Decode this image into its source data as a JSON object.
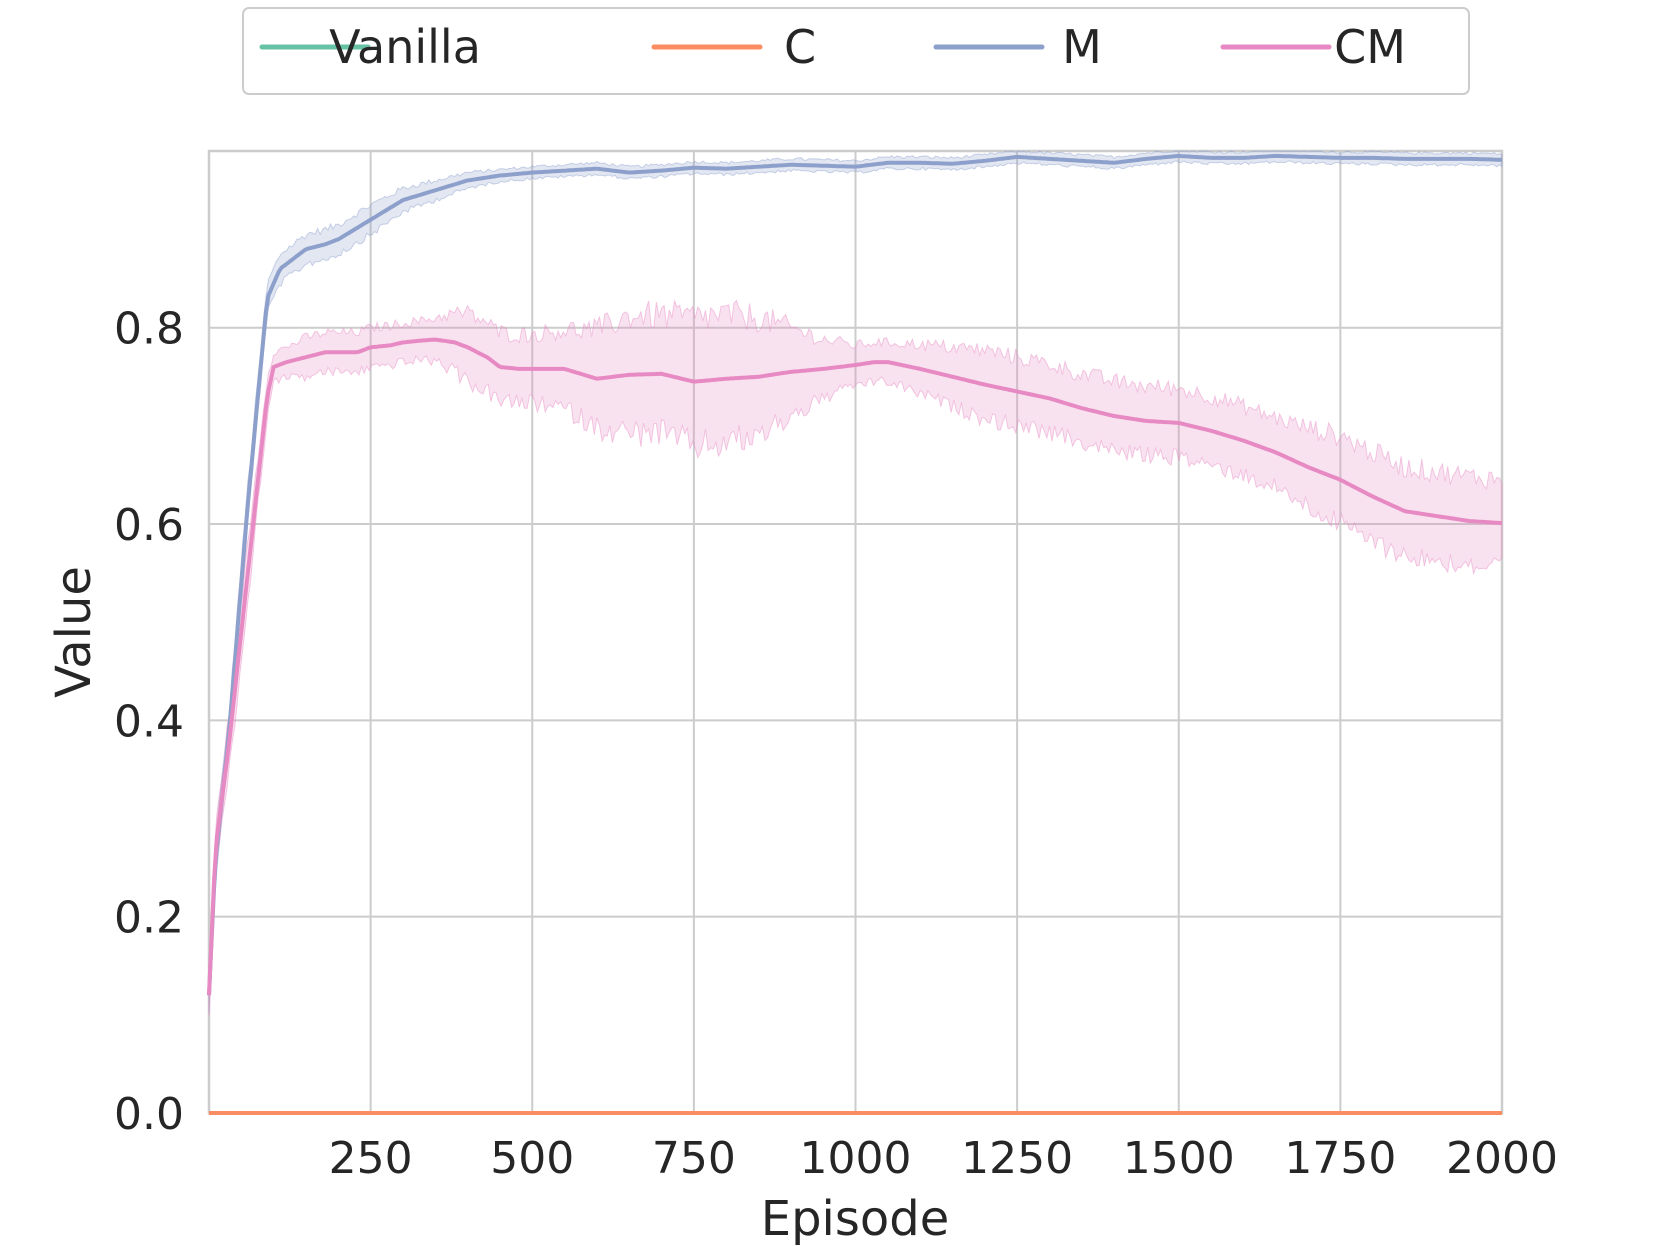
{
  "chart_data": {
    "type": "line",
    "xlabel": "Episode",
    "ylabel": "Value",
    "xlim": [
      0,
      2000
    ],
    "ylim": [
      0,
      0.98
    ],
    "xticks": [
      250,
      500,
      750,
      1000,
      1250,
      1500,
      1750,
      2000
    ],
    "xtick_labels": [
      "250",
      "500",
      "750",
      "1000",
      "1250",
      "1500",
      "1750",
      "2000"
    ],
    "yticks": [
      0.0,
      0.2,
      0.4,
      0.6,
      0.8
    ],
    "ytick_labels": [
      "0.0",
      "0.2",
      "0.4",
      "0.6",
      "0.8"
    ],
    "grid": true,
    "legend_position": "top-center",
    "series": [
      {
        "name": "Vanilla",
        "color": "#66c2a5",
        "x": [
          0,
          2000
        ],
        "y": [
          0.0,
          0.0
        ]
      },
      {
        "name": "C",
        "color": "#fc8d62",
        "x": [
          0,
          2000
        ],
        "y": [
          0.0,
          0.0
        ]
      },
      {
        "name": "M",
        "color": "#8da0cb",
        "x": [
          0,
          10,
          30,
          60,
          90,
          110,
          130,
          150,
          180,
          200,
          250,
          300,
          350,
          400,
          450,
          500,
          550,
          600,
          650,
          700,
          750,
          800,
          850,
          900,
          950,
          1000,
          1050,
          1100,
          1150,
          1200,
          1250,
          1300,
          1350,
          1400,
          1450,
          1500,
          1550,
          1600,
          1650,
          1700,
          1750,
          1800,
          1850,
          1900,
          1950,
          2000
        ],
        "y": [
          0.12,
          0.26,
          0.38,
          0.62,
          0.83,
          0.86,
          0.87,
          0.88,
          0.885,
          0.89,
          0.91,
          0.93,
          0.94,
          0.95,
          0.955,
          0.958,
          0.96,
          0.962,
          0.958,
          0.96,
          0.963,
          0.962,
          0.964,
          0.966,
          0.965,
          0.964,
          0.968,
          0.968,
          0.967,
          0.97,
          0.974,
          0.972,
          0.97,
          0.968,
          0.972,
          0.975,
          0.973,
          0.973,
          0.975,
          0.974,
          0.973,
          0.973,
          0.972,
          0.972,
          0.972,
          0.971
        ],
        "band_half_width": [
          0.02,
          0.02,
          0.02,
          0.02,
          0.015,
          0.015,
          0.015,
          0.015,
          0.015,
          0.015,
          0.015,
          0.012,
          0.01,
          0.008,
          0.006,
          0.006,
          0.006,
          0.006,
          0.006,
          0.006,
          0.006,
          0.006,
          0.006,
          0.006,
          0.006,
          0.006,
          0.006,
          0.006,
          0.006,
          0.006,
          0.006,
          0.006,
          0.006,
          0.006,
          0.006,
          0.006,
          0.006,
          0.006,
          0.006,
          0.006,
          0.006,
          0.006,
          0.006,
          0.006,
          0.006,
          0.006
        ]
      },
      {
        "name": "CM",
        "color": "#e78ac3",
        "x": [
          0,
          10,
          30,
          60,
          90,
          100,
          120,
          150,
          180,
          200,
          230,
          250,
          280,
          300,
          330,
          350,
          380,
          400,
          430,
          450,
          480,
          500,
          550,
          600,
          650,
          700,
          750,
          800,
          850,
          900,
          950,
          1000,
          1030,
          1050,
          1100,
          1150,
          1200,
          1250,
          1300,
          1350,
          1400,
          1450,
          1500,
          1550,
          1600,
          1650,
          1700,
          1750,
          1800,
          1850,
          1900,
          1950,
          2000
        ],
        "y": [
          0.12,
          0.27,
          0.37,
          0.55,
          0.73,
          0.76,
          0.765,
          0.77,
          0.775,
          0.775,
          0.775,
          0.78,
          0.782,
          0.785,
          0.787,
          0.788,
          0.785,
          0.78,
          0.77,
          0.76,
          0.758,
          0.758,
          0.758,
          0.748,
          0.752,
          0.753,
          0.745,
          0.748,
          0.75,
          0.755,
          0.758,
          0.762,
          0.765,
          0.765,
          0.758,
          0.75,
          0.742,
          0.735,
          0.728,
          0.718,
          0.71,
          0.705,
          0.703,
          0.695,
          0.685,
          0.673,
          0.658,
          0.645,
          0.628,
          0.613,
          0.608,
          0.603,
          0.601
        ],
        "band_half_width": [
          0.02,
          0.02,
          0.03,
          0.03,
          0.02,
          0.015,
          0.015,
          0.02,
          0.02,
          0.02,
          0.02,
          0.02,
          0.02,
          0.02,
          0.02,
          0.022,
          0.03,
          0.035,
          0.035,
          0.035,
          0.035,
          0.035,
          0.04,
          0.05,
          0.06,
          0.06,
          0.065,
          0.065,
          0.06,
          0.045,
          0.03,
          0.02,
          0.02,
          0.02,
          0.025,
          0.03,
          0.035,
          0.035,
          0.035,
          0.035,
          0.035,
          0.035,
          0.035,
          0.035,
          0.035,
          0.035,
          0.04,
          0.045,
          0.045,
          0.045,
          0.045,
          0.045,
          0.045
        ]
      }
    ]
  }
}
